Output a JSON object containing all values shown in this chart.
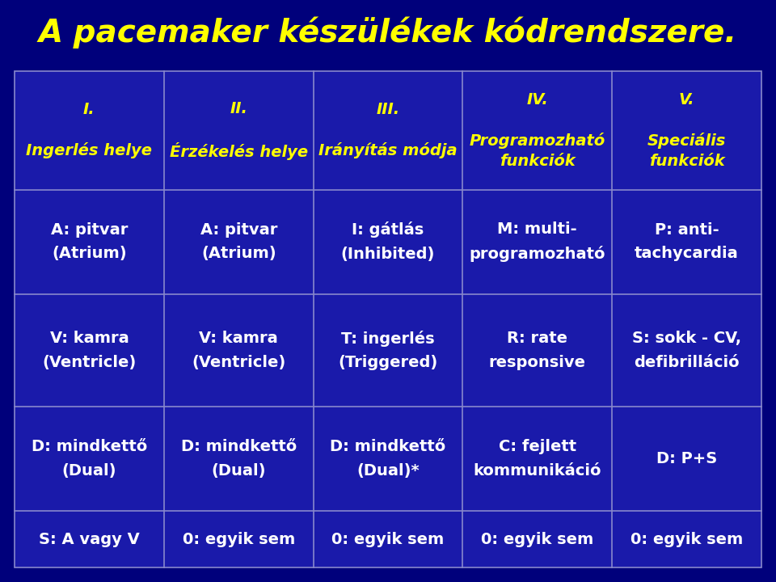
{
  "title": "A pacemaker készülékek kódrendszere.",
  "title_color": "#FFFF00",
  "title_bg_color": "#00007B",
  "table_bg_color": "#1a1aaa",
  "header_text_color": "#FFFF00",
  "cell_text_color": "#FFFFFF",
  "grid_color": "#8888CC",
  "columns_line1": [
    "I.",
    "II.",
    "III.",
    "IV.",
    "V."
  ],
  "columns_line2": [
    "Ingerlés helye",
    "Érzékelés helye",
    "Irányítás módja",
    "Programozható\nfunkciók",
    "Speciális\nfunkciók"
  ],
  "rows": [
    [
      "A: pitvar\n(Atrium)",
      "A: pitvar\n(Atrium)",
      "I: gátlás\n(Inhibited)",
      "M: multi-\nprogramozható",
      "P: anti-\ntachycardia"
    ],
    [
      "V: kamra\n(Ventricle)",
      "V: kamra\n(Ventricle)",
      "T: ingerlés\n(Triggered)",
      "R: rate\nresponsive",
      "S: sokk - CV,\ndefibrilláció"
    ],
    [
      "D: mindkettő\n(Dual)",
      "D: mindkettő\n(Dual)",
      "D: mindkettő\n(Dual)*",
      "C: fejlett\nkommunikáció",
      "D: P+S"
    ],
    [
      "S: A vagy V",
      "0: egyik sem",
      "0: egyik sem",
      "0: egyik sem",
      "0: egyik sem"
    ]
  ],
  "figsize": [
    9.6,
    7.2
  ],
  "dpi": 100
}
